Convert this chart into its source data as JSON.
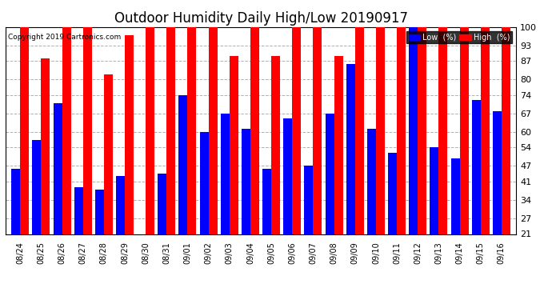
{
  "title": "Outdoor Humidity Daily High/Low 20190917",
  "copyright": "Copyright 2019 Cartronics.com",
  "categories": [
    "08/24",
    "08/25",
    "08/26",
    "08/27",
    "08/28",
    "08/29",
    "08/30",
    "08/31",
    "09/01",
    "09/02",
    "09/03",
    "09/04",
    "09/05",
    "09/06",
    "09/07",
    "09/08",
    "09/09",
    "09/10",
    "09/11",
    "09/12",
    "09/13",
    "09/14",
    "09/15",
    "09/16"
  ],
  "high_values": [
    100,
    88,
    100,
    100,
    82,
    97,
    100,
    100,
    100,
    100,
    89,
    100,
    89,
    100,
    100,
    89,
    100,
    100,
    100,
    100,
    100,
    100,
    100,
    100
  ],
  "low_values": [
    46,
    57,
    71,
    39,
    38,
    43,
    21,
    44,
    74,
    60,
    67,
    61,
    46,
    65,
    47,
    67,
    86,
    61,
    52,
    100,
    54,
    50,
    72,
    68
  ],
  "high_color": "#ff0000",
  "low_color": "#0000ff",
  "bg_color": "#ffffff",
  "grid_color": "#b0b0b0",
  "ylim_min": 21,
  "ylim_max": 100,
  "yticks": [
    21,
    27,
    34,
    41,
    47,
    54,
    60,
    67,
    74,
    80,
    87,
    93,
    100
  ],
  "title_fontsize": 12,
  "legend_labels": [
    "Low  (%)",
    "High  (%)"
  ],
  "bar_width": 0.42
}
